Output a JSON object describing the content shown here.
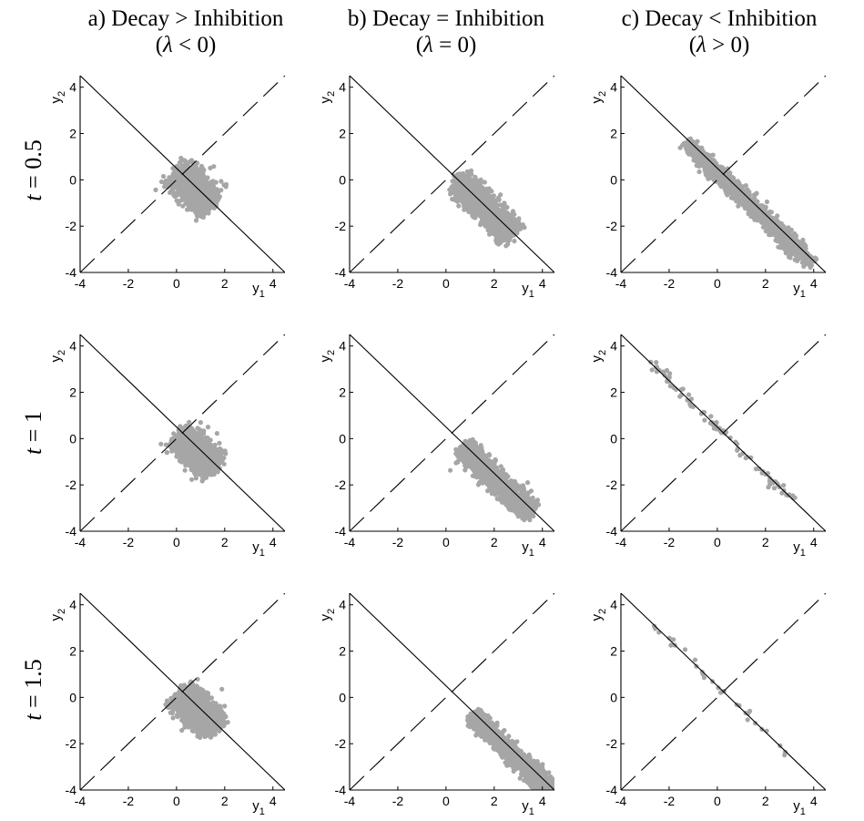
{
  "columns": [
    {
      "line1": "a) Decay > Inhibition",
      "lambda": "λ",
      "relation": "< 0"
    },
    {
      "line1": "b) Decay = Inhibition",
      "lambda": "λ",
      "relation": "= 0"
    },
    {
      "line1": "c) Decay < Inhibition",
      "lambda": "λ",
      "relation": "> 0"
    }
  ],
  "rows": [
    {
      "var": "t",
      "rest": " = 0.5"
    },
    {
      "var": "t",
      "rest": " = 1"
    },
    {
      "var": "t",
      "rest": " = 1.5"
    }
  ],
  "axis": {
    "xlabel": "y",
    "xsub": "1",
    "ylabel": "y",
    "ysub": "2"
  },
  "colors": {
    "points": "#a6a6a6",
    "lines": "#000000"
  },
  "chart_data": {
    "type": "scatter",
    "layout": "3x3 grid of scatter panels",
    "xlim": [
      -4,
      4.5
    ],
    "ylim": [
      -4,
      4.5
    ],
    "xticks": [
      -4,
      -2,
      0,
      2,
      4
    ],
    "yticks": [
      -4,
      -2,
      0,
      2,
      4
    ],
    "grid": false,
    "legend": "none",
    "reference_lines": [
      {
        "style": "solid",
        "slope": -1,
        "through": [
          0,
          0.5
        ],
        "description": "y1 + y2 = 0.5"
      },
      {
        "style": "dashed",
        "slope": 1,
        "through": [
          0,
          0
        ],
        "description": "y2 = y1"
      }
    ],
    "panels": [
      {
        "column": "a",
        "t": 0.5,
        "cloud_center": [
          0.6,
          -0.2
        ],
        "along_from": -0.8,
        "along_to": 1.2,
        "perp_spread": 0.32,
        "points": 1600
      },
      {
        "column": "b",
        "t": 0.5,
        "cloud_center": [
          1.2,
          -0.8
        ],
        "along_from": -1.0,
        "along_to": 2.2,
        "perp_spread": 0.26,
        "points": 1700
      },
      {
        "column": "c",
        "t": 0.5,
        "cloud_center": [
          1.6,
          -1.3
        ],
        "along_from": -4.0,
        "along_to": 3.2,
        "perp_spread": 0.16,
        "points": 1600
      },
      {
        "column": "a",
        "t": 1,
        "cloud_center": [
          0.7,
          -0.4
        ],
        "along_from": -0.8,
        "along_to": 1.2,
        "perp_spread": 0.3,
        "points": 1600
      },
      {
        "column": "b",
        "t": 1,
        "cloud_center": [
          1.7,
          -1.4
        ],
        "along_from": -1.4,
        "along_to": 2.5,
        "perp_spread": 0.22,
        "points": 1600
      },
      {
        "column": "c",
        "t": 1,
        "cloud_center": [
          0.2,
          0.3
        ],
        "along_from": -4.2,
        "along_to": 4.2,
        "perp_spread": 0.1,
        "points": 90
      },
      {
        "column": "a",
        "t": 1.5,
        "cloud_center": [
          0.7,
          -0.4
        ],
        "along_from": -0.8,
        "along_to": 1.3,
        "perp_spread": 0.32,
        "points": 1600
      },
      {
        "column": "b",
        "t": 1.5,
        "cloud_center": [
          2.3,
          -2.0
        ],
        "along_from": -1.7,
        "along_to": 2.8,
        "perp_spread": 0.18,
        "points": 1600
      },
      {
        "column": "c",
        "t": 1.5,
        "cloud_center": [
          0.2,
          0.3
        ],
        "along_from": -4.0,
        "along_to": 4.0,
        "perp_spread": 0.08,
        "points": 30
      }
    ]
  }
}
